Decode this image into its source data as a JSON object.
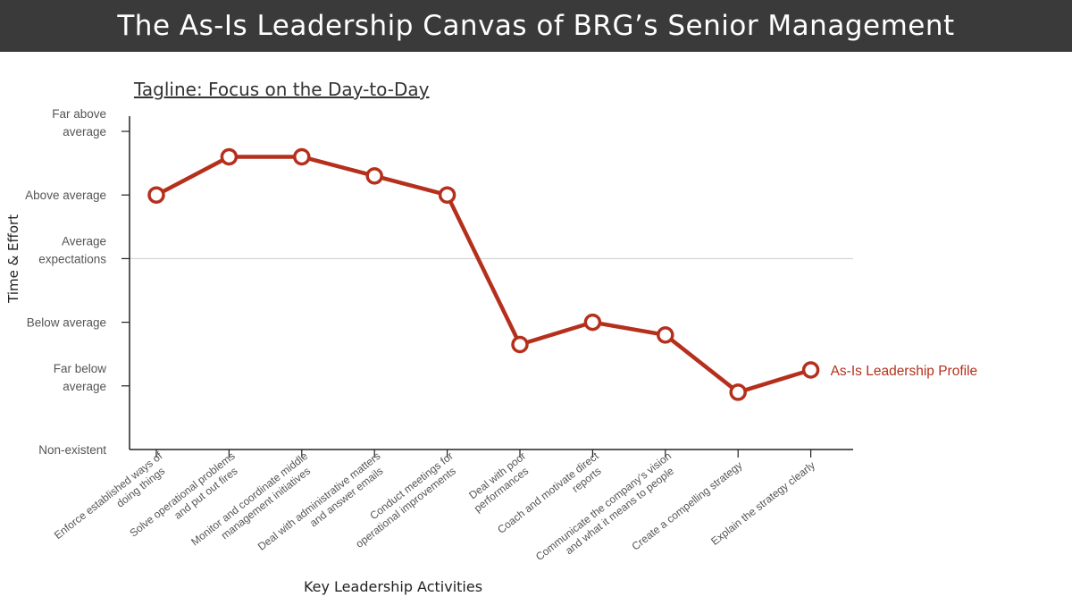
{
  "header": {
    "title": "The As-Is Leadership Canvas of BRG’s Senior Management"
  },
  "tagline": "Tagline: Focus on the Day-to-Day",
  "chart_data": {
    "type": "line",
    "title": "The As-Is Leadership Canvas of BRG’s Senior Management",
    "subtitle": "Tagline: Focus on the Day-to-Day",
    "xlabel": "Key Leadership Activities",
    "ylabel": "Time & Effort",
    "ylim": [
      0,
      5.3
    ],
    "y_ticks": [
      {
        "value": 0,
        "lines": [
          "Non-existent"
        ]
      },
      {
        "value": 1,
        "lines": [
          "Far below",
          "average"
        ]
      },
      {
        "value": 2,
        "lines": [
          "Below average"
        ]
      },
      {
        "value": 3,
        "lines": [
          "Average",
          "expectations"
        ]
      },
      {
        "value": 4,
        "lines": [
          "Above average"
        ]
      },
      {
        "value": 5,
        "lines": [
          "Far above",
          "average"
        ]
      }
    ],
    "reference_line": 3,
    "categories": [
      [
        "Enforce established ways of",
        "doing things"
      ],
      [
        "Solve operational problems",
        "and put out fires"
      ],
      [
        "Monitor and coordinate middle",
        "management initiatives"
      ],
      [
        "Deal with administrative matters",
        "and answer emails"
      ],
      [
        "Conduct meetings for",
        "operational improvements"
      ],
      [
        "Deal with poor",
        "performances"
      ],
      [
        "Coach and motivate direct",
        "reports"
      ],
      [
        "Communicate the company’s vision",
        "and what it means to people"
      ],
      [
        "Create a compelling strategy"
      ],
      [
        "Explain the strategy clearly"
      ]
    ],
    "series": [
      {
        "name": "As-Is Leadership Profile",
        "color": "#b5301c",
        "values": [
          4.0,
          4.6,
          4.6,
          4.3,
          4.0,
          1.65,
          2.0,
          1.8,
          0.9,
          1.25
        ]
      }
    ]
  }
}
